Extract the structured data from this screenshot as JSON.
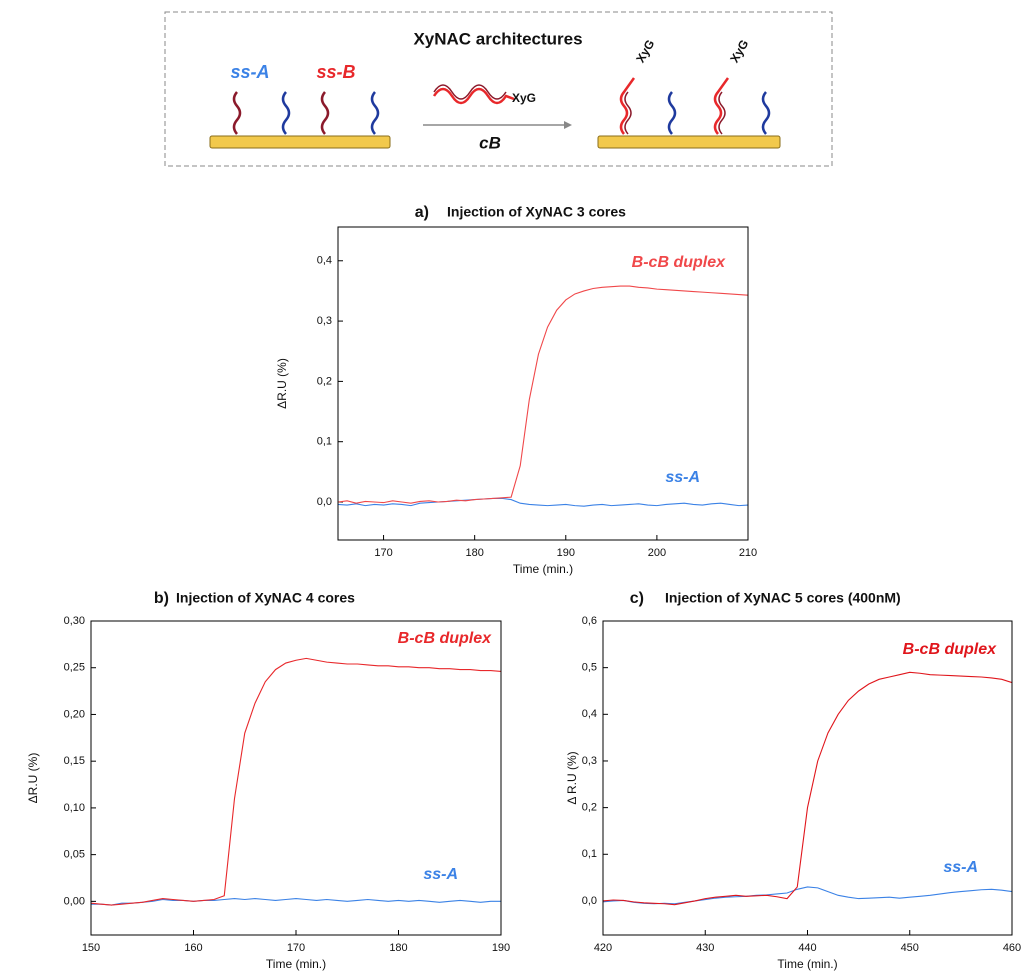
{
  "diagram": {
    "title": "XyNAC architectures",
    "strand_a": "ss-A",
    "strand_b": "ss-B",
    "tag": "XyG",
    "reagent": "cB"
  },
  "chart_data": [
    {
      "type": "line",
      "panel": "a)",
      "title": "Injection of XyNAC 3 cores",
      "x_label": "Time (min.)",
      "y_label": "ΔR.U (%)",
      "x": [
        165,
        166,
        167,
        168,
        169,
        170,
        171,
        172,
        173,
        174,
        175,
        176,
        177,
        178,
        179,
        180,
        181,
        182,
        183,
        184,
        185,
        186,
        187,
        188,
        189,
        190,
        191,
        192,
        193,
        194,
        195,
        196,
        197,
        198,
        199,
        200,
        201,
        202,
        203,
        204,
        205,
        206,
        207,
        208,
        209,
        210
      ],
      "series": [
        {
          "name": "ss-A",
          "color": "#3b82e6",
          "values": [
            -0.004,
            -0.005,
            -0.003,
            -0.006,
            -0.004,
            -0.005,
            -0.003,
            -0.004,
            -0.006,
            -0.002,
            -0.001,
            0.0,
            0.001,
            0.002,
            0.003,
            0.004,
            0.005,
            0.006,
            0.006,
            0.004,
            -0.002,
            -0.004,
            -0.005,
            -0.006,
            -0.005,
            -0.004,
            -0.006,
            -0.007,
            -0.005,
            -0.004,
            -0.006,
            -0.005,
            -0.004,
            -0.003,
            -0.005,
            -0.006,
            -0.004,
            -0.003,
            -0.002,
            -0.004,
            -0.005,
            -0.003,
            -0.002,
            -0.004,
            -0.006,
            -0.005
          ]
        },
        {
          "name": "B-cB duplex",
          "color": "#f0484a",
          "values": [
            0.0,
            0.002,
            -0.002,
            0.001,
            0.0,
            -0.001,
            0.002,
            0.0,
            -0.002,
            0.001,
            0.002,
            0.0,
            0.001,
            0.003,
            0.002,
            0.004,
            0.005,
            0.006,
            0.007,
            0.008,
            0.06,
            0.17,
            0.245,
            0.29,
            0.318,
            0.335,
            0.345,
            0.35,
            0.354,
            0.356,
            0.357,
            0.358,
            0.358,
            0.356,
            0.355,
            0.353,
            0.352,
            0.351,
            0.35,
            0.349,
            0.348,
            0.347,
            0.346,
            0.345,
            0.344,
            0.343
          ]
        }
      ],
      "xlim": [
        165,
        210
      ],
      "xticks": [
        170,
        180,
        190,
        200,
        210
      ],
      "ylim": [
        -0.063,
        0.456
      ],
      "yticks": [
        {
          "value": 0,
          "label": "0,0"
        },
        {
          "value": 0.1,
          "label": "0,1"
        },
        {
          "value": 0.2,
          "label": "0,2"
        },
        {
          "value": 0.3,
          "label": "0,3"
        },
        {
          "value": 0.4,
          "label": "0,4"
        }
      ]
    },
    {
      "type": "line",
      "panel": "b)",
      "title": "Injection of XyNAC 4 cores",
      "x_label": "Time (min.)",
      "y_label": "ΔR.U (%)",
      "x": [
        150,
        151,
        152,
        153,
        154,
        155,
        156,
        157,
        158,
        159,
        160,
        161,
        162,
        163,
        164,
        165,
        166,
        167,
        168,
        169,
        170,
        171,
        172,
        173,
        174,
        175,
        176,
        177,
        178,
        179,
        180,
        181,
        182,
        183,
        184,
        185,
        186,
        187,
        188,
        189,
        190
      ],
      "series": [
        {
          "name": "ss-A",
          "color": "#3b82e6",
          "values": [
            -0.003,
            -0.003,
            -0.004,
            -0.002,
            -0.002,
            -0.001,
            0.0,
            0.002,
            0.001,
            0.001,
            0.0,
            0.001,
            0.001,
            0.002,
            0.003,
            0.002,
            0.003,
            0.002,
            0.001,
            0.002,
            0.003,
            0.002,
            0.001,
            0.002,
            0.001,
            0.0,
            0.001,
            0.002,
            0.001,
            0.0,
            0.001,
            0.0,
            0.001,
            0.0,
            -0.001,
            0.0,
            0.001,
            0.0,
            -0.001,
            0.0,
            0.0
          ]
        },
        {
          "name": "B-cB duplex",
          "color": "#e8282b",
          "values": [
            -0.002,
            -0.003,
            -0.004,
            -0.003,
            -0.002,
            -0.001,
            0.001,
            0.003,
            0.002,
            0.001,
            0.0,
            0.001,
            0.002,
            0.006,
            0.11,
            0.18,
            0.212,
            0.235,
            0.248,
            0.255,
            0.258,
            0.26,
            0.258,
            0.256,
            0.255,
            0.254,
            0.254,
            0.253,
            0.252,
            0.252,
            0.251,
            0.251,
            0.25,
            0.25,
            0.249,
            0.249,
            0.248,
            0.248,
            0.247,
            0.247,
            0.246
          ]
        }
      ],
      "xlim": [
        150,
        190
      ],
      "xticks": [
        150,
        160,
        170,
        180,
        190
      ],
      "ylim": [
        -0.036,
        0.3
      ],
      "yticks": [
        {
          "value": 0,
          "label": "0,00"
        },
        {
          "value": 0.05,
          "label": "0,05"
        },
        {
          "value": 0.1,
          "label": "0,10"
        },
        {
          "value": 0.15,
          "label": "0,15"
        },
        {
          "value": 0.2,
          "label": "0,20"
        },
        {
          "value": 0.25,
          "label": "0,25"
        },
        {
          "value": 0.3,
          "label": "0,30"
        }
      ]
    },
    {
      "type": "line",
      "panel": "c)",
      "title": "Injection of XyNAC 5 cores (400nM)",
      "x_label": "Time (min.)",
      "y_label": "Δ R.U (%)",
      "x": [
        420,
        421,
        422,
        423,
        424,
        425,
        426,
        427,
        428,
        429,
        430,
        431,
        432,
        433,
        434,
        435,
        436,
        437,
        438,
        439,
        440,
        441,
        442,
        443,
        444,
        445,
        446,
        447,
        448,
        449,
        450,
        451,
        452,
        453,
        454,
        455,
        456,
        457,
        458,
        459,
        460
      ],
      "series": [
        {
          "name": "ss-A",
          "color": "#3b82e6",
          "values": [
            -0.002,
            0.0,
            0.001,
            -0.003,
            -0.005,
            -0.006,
            -0.005,
            -0.006,
            -0.003,
            0.0,
            0.003,
            0.006,
            0.008,
            0.009,
            0.01,
            0.012,
            0.013,
            0.015,
            0.017,
            0.025,
            0.03,
            0.028,
            0.02,
            0.012,
            0.008,
            0.005,
            0.006,
            0.007,
            0.008,
            0.006,
            0.008,
            0.01,
            0.012,
            0.015,
            0.018,
            0.02,
            0.022,
            0.024,
            0.025,
            0.023,
            0.02
          ]
        },
        {
          "name": "B-cB duplex",
          "color": "#e0161c",
          "values": [
            0.0,
            0.002,
            0.001,
            -0.002,
            -0.004,
            -0.005,
            -0.006,
            -0.008,
            -0.004,
            0.0,
            0.005,
            0.008,
            0.01,
            0.012,
            0.01,
            0.011,
            0.012,
            0.009,
            0.005,
            0.03,
            0.2,
            0.3,
            0.36,
            0.4,
            0.43,
            0.45,
            0.465,
            0.475,
            0.48,
            0.485,
            0.49,
            0.488,
            0.485,
            0.484,
            0.483,
            0.482,
            0.481,
            0.48,
            0.478,
            0.475,
            0.468
          ]
        }
      ],
      "xlim": [
        420,
        460
      ],
      "xticks": [
        420,
        430,
        440,
        450,
        460
      ],
      "ylim": [
        -0.073,
        0.6
      ],
      "yticks": [
        {
          "value": 0,
          "label": "0,0"
        },
        {
          "value": 0.1,
          "label": "0,1"
        },
        {
          "value": 0.2,
          "label": "0,2"
        },
        {
          "value": 0.3,
          "label": "0,3"
        },
        {
          "value": 0.4,
          "label": "0,4"
        },
        {
          "value": 0.5,
          "label": "0,5"
        },
        {
          "value": 0.6,
          "label": "0,6"
        }
      ]
    }
  ]
}
